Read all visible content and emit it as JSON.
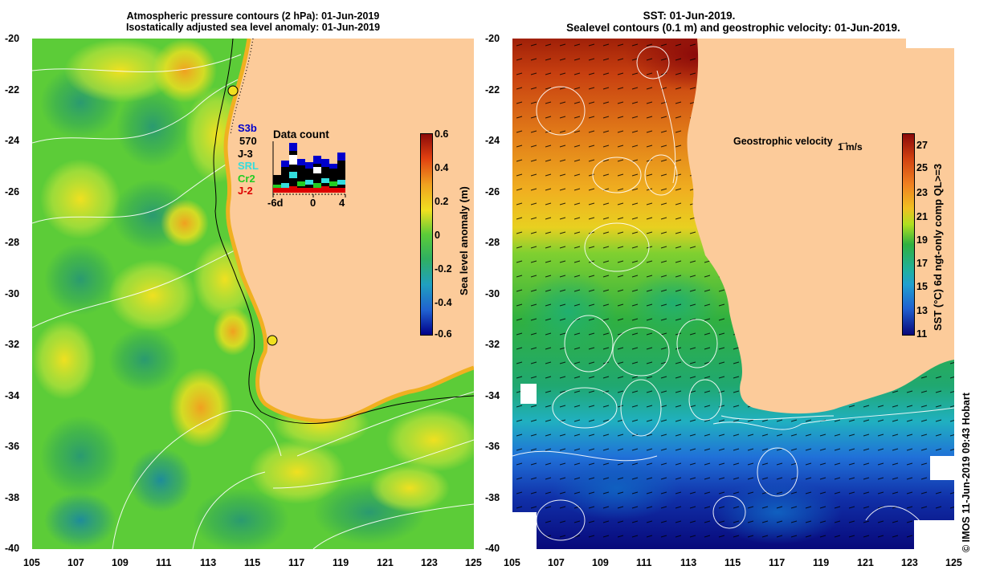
{
  "left_panel": {
    "title_line1": "Atmospheric pressure contours (2 hPa): 01-Jun-2019",
    "title_line2": "Isostatically adjusted sea level anomaly: 01-Jun-2019",
    "x_ticks": [
      "105",
      "107",
      "109",
      "111",
      "113",
      "115",
      "117",
      "119",
      "121",
      "123",
      "125"
    ],
    "y_ticks": [
      "-20",
      "-22",
      "-24",
      "-26",
      "-28",
      "-30",
      "-32",
      "-34",
      "-36",
      "-38",
      "-40"
    ],
    "colorbar": {
      "label": "Sea level anomaly (m)",
      "ticks": [
        "0.6",
        "0.4",
        "0.2",
        "0",
        "-0.2",
        "-0.4",
        "-0.6"
      ]
    },
    "legend": {
      "satellites": [
        {
          "label": "S3b",
          "color": "#0000cc"
        },
        {
          "label": "570",
          "color": "#000000"
        },
        {
          "label": "J-3",
          "color": "#000000"
        },
        {
          "label": "SRL",
          "color": "#33dddd"
        },
        {
          "label": "Cr2",
          "color": "#22cc22"
        },
        {
          "label": "J-2",
          "color": "#dd0000"
        }
      ],
      "data_count_title": "Data count",
      "axis_labels": [
        "-6d",
        "0",
        "4"
      ]
    }
  },
  "right_panel": {
    "title_line1": "SST: 01-Jun-2019.",
    "title_line2": "Sealevel contours (0.1 m) and geostrophic velocity: 01-Jun-2019.",
    "x_ticks": [
      "105",
      "107",
      "109",
      "111",
      "113",
      "115",
      "117",
      "119",
      "121",
      "123",
      "125"
    ],
    "y_ticks": [
      "-20",
      "-22",
      "-24",
      "-26",
      "-28",
      "-30",
      "-32",
      "-34",
      "-36",
      "-38",
      "-40"
    ],
    "colorbar": {
      "label": "SST (°C) 6d ngt-only comp QL>=3",
      "ticks": [
        "27",
        "25",
        "23",
        "21",
        "19",
        "17",
        "15",
        "13",
        "11"
      ]
    },
    "velocity_key": {
      "label": "Geostrophic velocity",
      "unit": "1 m/s"
    }
  },
  "credit": "© IMOS 11-Jun-2019 09:43 Hobart",
  "colors": {
    "land": "#fccb9a",
    "sla_high": "#8b0a0a",
    "sla_low": "#000088",
    "sst_high": "#8b0a0a",
    "sst_low": "#08087a"
  }
}
